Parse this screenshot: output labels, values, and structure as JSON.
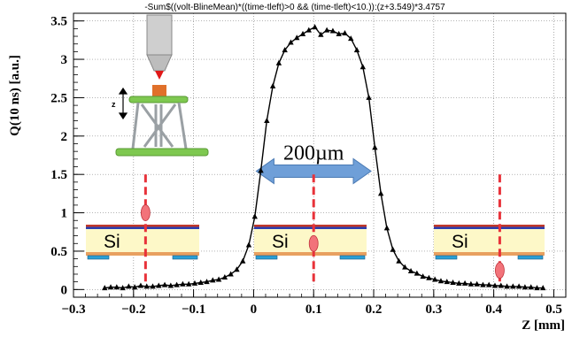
{
  "chart_data": {
    "type": "line",
    "title": "-Sum$((volt-BlineMean)*((time-tleft)>0 && (time-tleft)<10.)):(z+3.549)*3.4757",
    "xlabel": "Z [mm]",
    "ylabel": "Q(10 ns) [a.u.]",
    "xlim": [
      -0.3,
      0.52
    ],
    "ylim": [
      -0.1,
      3.6
    ],
    "xticks": [
      "−0.3",
      "−0.2",
      "−0.1",
      "0",
      "0.1",
      "0.2",
      "0.3",
      "0.4",
      "0.5"
    ],
    "yticks": [
      "0",
      "0.5",
      "1",
      "1.5",
      "2",
      "2.5",
      "3",
      "3.5"
    ],
    "grid": true,
    "series": [
      {
        "marker": "triangle",
        "color": "#000000",
        "x": [
          -0.248,
          -0.238,
          -0.228,
          -0.218,
          -0.208,
          -0.198,
          -0.188,
          -0.178,
          -0.168,
          -0.158,
          -0.148,
          -0.138,
          -0.128,
          -0.118,
          -0.108,
          -0.098,
          -0.088,
          -0.078,
          -0.068,
          -0.058,
          -0.048,
          -0.038,
          -0.028,
          -0.018,
          -0.008,
          0.002,
          0.012,
          0.022,
          0.032,
          0.042,
          0.052,
          0.062,
          0.072,
          0.082,
          0.092,
          0.102,
          0.112,
          0.122,
          0.132,
          0.142,
          0.152,
          0.162,
          0.172,
          0.182,
          0.192,
          0.202,
          0.212,
          0.222,
          0.232,
          0.242,
          0.252,
          0.262,
          0.272,
          0.282,
          0.292,
          0.302,
          0.312,
          0.322,
          0.332,
          0.342,
          0.352,
          0.362,
          0.372,
          0.382,
          0.392,
          0.402,
          0.412,
          0.422,
          0.432,
          0.442,
          0.452,
          0.462,
          0.472,
          0.482
        ],
        "y": [
          0.02,
          0.03,
          0.03,
          0.02,
          0.04,
          0.03,
          0.05,
          0.04,
          0.04,
          0.05,
          0.06,
          0.05,
          0.06,
          0.07,
          0.07,
          0.08,
          0.09,
          0.1,
          0.12,
          0.13,
          0.16,
          0.2,
          0.26,
          0.37,
          0.58,
          0.95,
          1.55,
          2.2,
          2.65,
          2.95,
          3.12,
          3.22,
          3.28,
          3.33,
          3.38,
          3.42,
          3.32,
          3.38,
          3.37,
          3.33,
          3.34,
          3.27,
          3.12,
          2.9,
          2.5,
          1.85,
          1.25,
          0.8,
          0.52,
          0.37,
          0.29,
          0.24,
          0.21,
          0.17,
          0.15,
          0.13,
          0.11,
          0.1,
          0.09,
          0.08,
          0.08,
          0.07,
          0.07,
          0.06,
          0.06,
          0.05,
          0.05,
          0.04,
          0.04,
          0.04,
          0.03,
          0.03,
          0.02,
          0.02
        ]
      }
    ],
    "annotations": [
      {
        "text": "200µm",
        "x_from": 0.0,
        "x_to": 0.2,
        "y": 1.6
      },
      {
        "text": "Si",
        "beam_x": -0.18,
        "charge_y": 1.0
      },
      {
        "text": "Si",
        "beam_x": 0.1,
        "charge_y": 0.6
      },
      {
        "text": "Si",
        "beam_x": 0.41,
        "charge_y": 0.25
      },
      {
        "text": "z"
      }
    ],
    "colors": {
      "arrow": "#6f9fd8",
      "beam": "#e8323a",
      "si_fill": "#fdf8c8",
      "si_top_bands": [
        "#c0392b",
        "#2a3fb0"
      ],
      "electrode": "#2a9fd6",
      "charge_blob": "#f2737a",
      "platform_green": "#7ec850",
      "lens_gray": "#c8c8c8"
    }
  }
}
